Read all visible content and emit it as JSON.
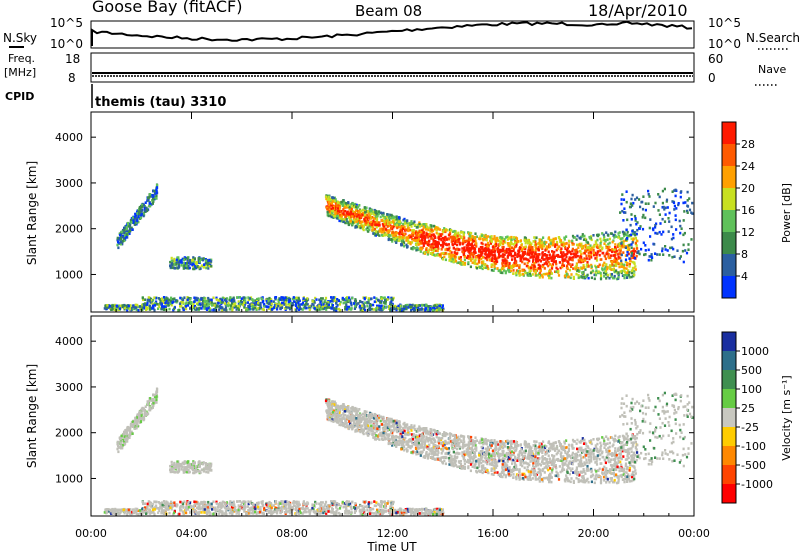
{
  "header": {
    "station": "Goose Bay (fitACF)",
    "beam": "Beam 08",
    "date": "18/Apr/2010"
  },
  "noise_panel": {
    "left_label": "N.Sky",
    "left_ticks": [
      "10^5",
      "10^0"
    ],
    "right_label": "N.Search",
    "right_ticks": [
      "10^5",
      "10^0"
    ]
  },
  "freq_panel": {
    "left_label_line1": "Freq.",
    "left_label_line2": "[MHz]",
    "left_ticks": [
      "18",
      "8"
    ],
    "right_label": "Nave",
    "right_ticks": [
      "60",
      "0"
    ]
  },
  "cpid": {
    "label": "CPID",
    "value": "themis (tau) 3310"
  },
  "chart_data": [
    {
      "type": "heatmap",
      "name": "power",
      "ylabel": "Slant Range [km]",
      "y_ticks": [
        "1000",
        "2000",
        "3000",
        "4000"
      ],
      "ylim": [
        180,
        4550
      ],
      "x_ticks": [
        "00:00",
        "04:00",
        "08:00",
        "12:00",
        "16:00",
        "20:00",
        "00:00"
      ],
      "xlim_hours": [
        0,
        24
      ],
      "colorbar_label": "Power [dB]",
      "colorbar_ticks": [
        "4",
        "8",
        "12",
        "16",
        "20",
        "24",
        "28"
      ],
      "colors": [
        "#0033ff",
        "#2b5fa0",
        "#3c8a4a",
        "#5fc15a",
        "#c8e020",
        "#ffa000",
        "#ff5a00",
        "#ff1a00"
      ]
    },
    {
      "type": "heatmap",
      "name": "velocity",
      "ylabel": "Slant Range [km]",
      "y_ticks": [
        "1000",
        "2000",
        "3000",
        "4000"
      ],
      "ylim": [
        180,
        4550
      ],
      "x_ticks": [
        "00:00",
        "04:00",
        "08:00",
        "12:00",
        "16:00",
        "20:00",
        "00:00"
      ],
      "xlim_hours": [
        0,
        24
      ],
      "xlabel": "Time UT",
      "colorbar_label": "Velocity  [m s⁻¹]",
      "colorbar_ticks": [
        "1000",
        "500",
        "100",
        "25",
        "-25",
        "-100",
        "-500",
        "-1000"
      ],
      "colors": [
        "#1a2fa0",
        "#2d6f8a",
        "#3f8f50",
        "#66cc44",
        "#c8c8c0",
        "#ffcc00",
        "#ff8800",
        "#ff4400",
        "#ff0000"
      ]
    }
  ],
  "colors": {
    "ground_scatter": "#c0c0b8",
    "axis": "#000000"
  }
}
